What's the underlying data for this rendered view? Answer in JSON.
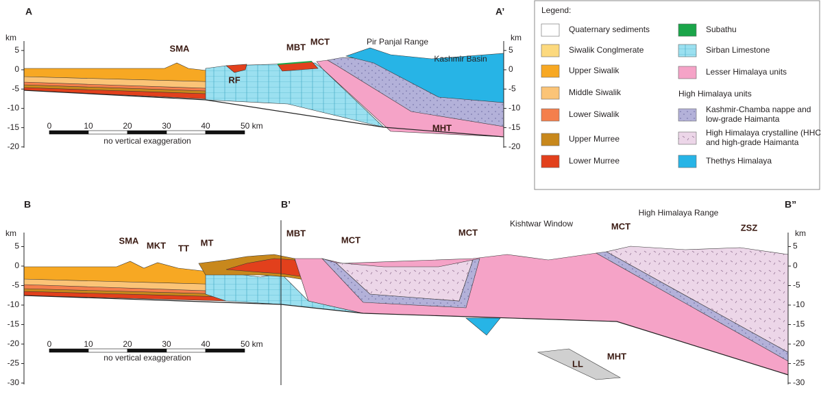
{
  "section_a": {
    "label_left": "A",
    "label_right": "A’",
    "unit_left": "km",
    "unit_right": "km",
    "yticks": [
      5,
      0,
      -5,
      -10,
      -15,
      -20
    ],
    "labels": [
      "SMA",
      "MBT",
      "MCT",
      "Pir Panjal Range",
      "Kashmir Basin",
      "RF",
      "MHT"
    ],
    "scale": {
      "labels": [
        "0",
        "10",
        "20",
        "30",
        "40",
        "50 km"
      ],
      "note": "no vertical exaggeration"
    }
  },
  "legend": {
    "title": "Legend:",
    "items": [
      [
        "Quaternary sediments"
      ],
      [
        "Siwalik Conglmerate"
      ],
      [
        "Upper Siwalik"
      ],
      [
        "Middle Siwalik"
      ],
      [
        "Lower Siwalik"
      ],
      [
        "Upper Murree"
      ],
      [
        "Lower Murree"
      ],
      [
        "Subathu"
      ],
      [
        "Sirban Limestone"
      ],
      [
        "Lesser Himalaya units"
      ],
      [
        "Kashmir-Chamba nappe and",
        "low-grade Haimanta"
      ],
      [
        "High Himalaya crystalline (HHC)",
        "and high-grade Haimanta"
      ],
      [
        "Thethys Himalaya"
      ]
    ],
    "group": "High Himalaya units"
  },
  "section_b": {
    "label_left": "B",
    "label_mid": "B’",
    "label_right": "B”",
    "unit_left": "km",
    "unit_right": "km",
    "yticks": [
      5,
      0,
      -5,
      -10,
      -15,
      -20,
      -25,
      -30
    ],
    "labels": [
      "SMA",
      "MKT",
      "TT",
      "MT",
      "MBT",
      "MCT",
      "MCT",
      "Kishtwar Window",
      "MCT",
      "High Himalaya Range",
      "ZSZ",
      "MHT",
      "LL"
    ],
    "scale": {
      "labels": [
        "0",
        "10",
        "20",
        "30",
        "40",
        "50 km"
      ],
      "note": "no vertical exaggeration"
    }
  }
}
